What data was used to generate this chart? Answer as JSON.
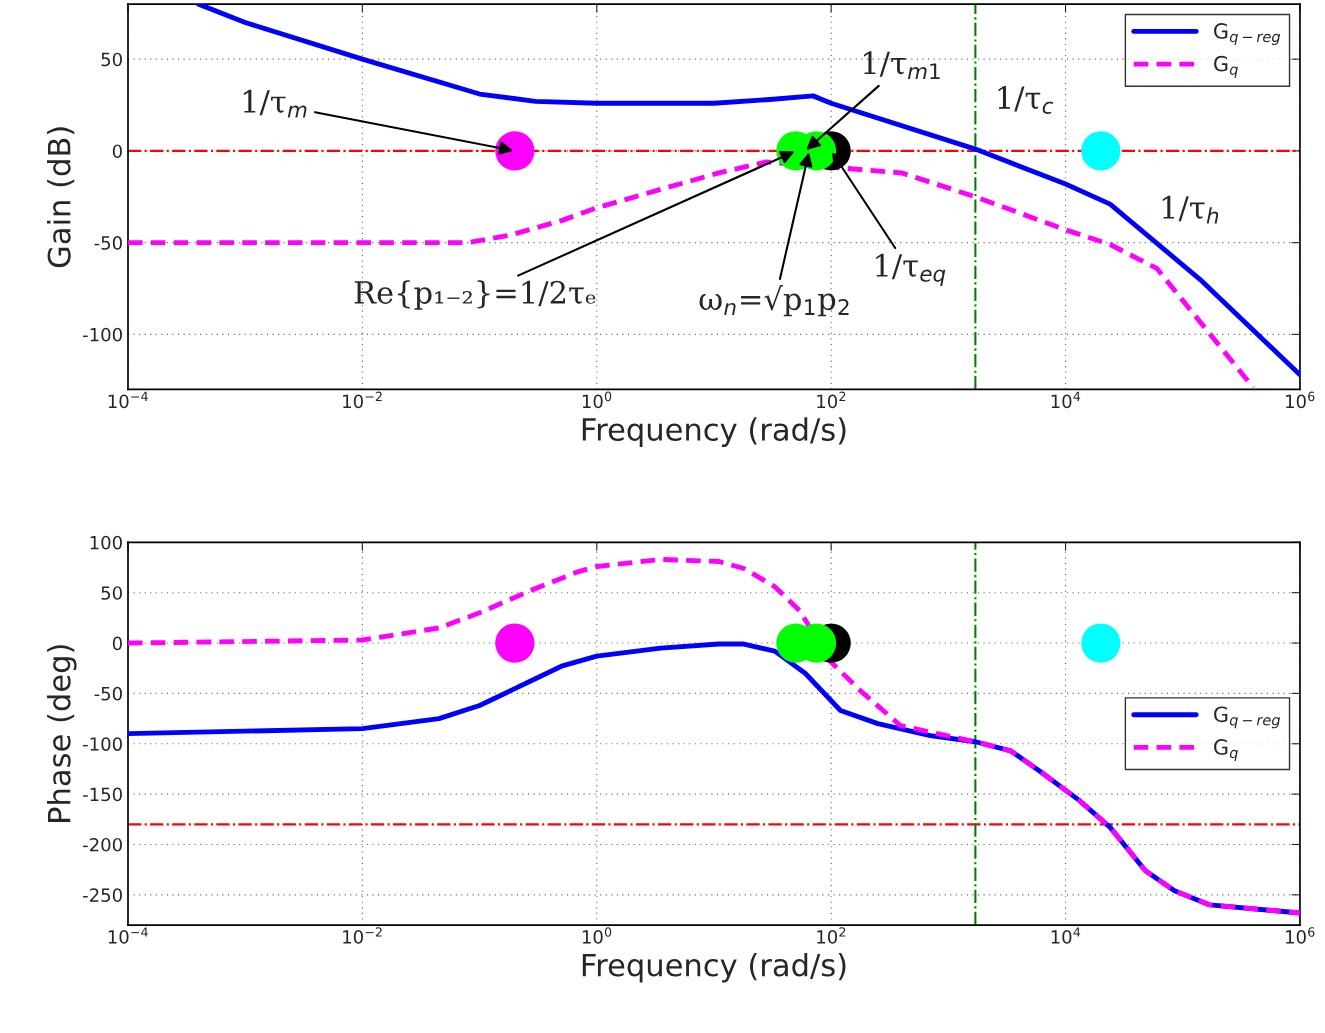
{
  "chart_data": [
    {
      "type": "line",
      "xlabel": "Frequency (rad/s)",
      "ylabel": "Gain (dB)",
      "log": "x",
      "xlim": [
        0.0001,
        1000000
      ],
      "xticks": [
        {
          "value": 0.0001,
          "label": "10$^{−4}$"
        },
        {
          "value": 0.01,
          "label": "10$^{−2}$"
        },
        {
          "value": 1,
          "label": "10$^{0}$"
        },
        {
          "value": 100,
          "label": "10$^{2}$"
        },
        {
          "value": 10000,
          "label": "10$^{4}$"
        },
        {
          "value": 1000000,
          "label": "10$^{6}$"
        }
      ],
      "ylim": [
        -130,
        80
      ],
      "yticks": [
        -100,
        -50,
        0,
        50
      ],
      "grid": true,
      "legend": "top right",
      "ref_lines": [
        {
          "axis": "y",
          "value": 0,
          "color": "#ff0000",
          "line_style": "dashdot"
        },
        {
          "axis": "x",
          "value": 1700,
          "color": "#008000",
          "line_style": "dashdot"
        }
      ],
      "series": [
        {
          "name": "G$_{q−reg}$",
          "type": "line",
          "color": "#0000ff",
          "line_style": "solid",
          "x": [
            0.0004,
            0.001,
            0.01,
            0.1,
            0.3,
            1,
            10,
            30,
            70,
            100,
            1700,
            10000,
            24000,
            140000,
            1000000
          ],
          "values": [
            80,
            70,
            50,
            31,
            27,
            26,
            26,
            28,
            30,
            26,
            1,
            -18,
            -29,
            -70,
            -122
          ]
        },
        {
          "name": "G$_{q}$",
          "type": "line",
          "color": "#ff00ff",
          "line_style": "dashed",
          "x": [
            0.0001,
            0.01,
            0.08,
            0.18,
            0.5,
            1,
            3.5,
            11,
            28,
            400,
            1700,
            10000,
            24000,
            60000,
            400000
          ],
          "values": [
            -50,
            -50,
            -50,
            -46,
            -38,
            -31,
            -21,
            -12,
            -6,
            -12,
            -25,
            -43,
            -51,
            -64,
            -129
          ]
        },
        {
          "type": "scatter",
          "marker": "circle",
          "x": [
            0.2,
            100,
            50,
            75,
            20000
          ],
          "values": [
            0,
            0,
            0,
            0,
            0
          ],
          "colors": [
            "#ff00ff",
            "#000000",
            "#00ff00",
            "#00ff00",
            "#00ffff"
          ]
        }
      ],
      "annotations": [
        {
          "text": "1/τ$_{m}$",
          "x": 0.2,
          "y": 0
        },
        {
          "text": "1/τ$_{m1}$",
          "x": 60,
          "y": 0
        },
        "1/τ$_{c}$",
        "1/τ$_{h}$",
        {
          "text": "Re{p₁₋₂}=1/2τₑ",
          "x": 50,
          "y": 0
        },
        {
          "text": "ω$_{n}$=√p$_{1}$p$_{2}$",
          "x": 65,
          "y": 0
        },
        {
          "text": "1/τ$_{eq}$",
          "x": 100,
          "y": 0
        }
      ]
    },
    {
      "type": "line",
      "xlabel": "Frequency (rad/s)",
      "ylabel": "Phase (deg)",
      "log": "x",
      "xlim": [
        0.0001,
        1000000
      ],
      "xticks": [
        {
          "value": 0.0001,
          "label": "10$^{−4}$"
        },
        {
          "value": 0.01,
          "label": "10$^{−2}$"
        },
        {
          "value": 1,
          "label": "10$^{0}$"
        },
        {
          "value": 100,
          "label": "10$^{2}$"
        },
        {
          "value": 10000,
          "label": "10$^{4}$"
        },
        {
          "value": 1000000,
          "label": "10$^{6}$"
        }
      ],
      "ylim": [
        -280,
        100
      ],
      "yticks": [
        -250,
        -200,
        -150,
        -100,
        -50,
        0,
        50,
        100
      ],
      "grid": true,
      "legend": "right",
      "ref_lines": [
        {
          "axis": "y",
          "value": -180,
          "color": "#ff0000",
          "line_style": "dashdot"
        },
        {
          "axis": "x",
          "value": 1700,
          "color": "#008000",
          "line_style": "dashdot"
        }
      ],
      "series": [
        {
          "name": "G$_{q−reg}$",
          "type": "line",
          "color": "#0000ff",
          "line_style": "solid",
          "x": [
            0.0001,
            0.01,
            0.045,
            0.1,
            0.27,
            0.5,
            1,
            3.5,
            11,
            18,
            33,
            60,
            120,
            250,
            700,
            1700,
            3400,
            6000,
            13000,
            24000,
            48000,
            85000,
            170000,
            1000000
          ],
          "values": [
            -90,
            -85,
            -75,
            -62,
            -38,
            -23,
            -13,
            -5,
            -1,
            -1,
            -8,
            -30,
            -67,
            -80,
            -92,
            -98,
            -107,
            -127,
            -156,
            -183,
            -226,
            -246,
            -260,
            -268
          ]
        },
        {
          "name": "G$_{q}$",
          "type": "line",
          "color": "#ff00ff",
          "line_style": "dashed",
          "x": [
            0.0001,
            0.01,
            0.045,
            0.1,
            0.27,
            0.7,
            1,
            3.5,
            11,
            18,
            33,
            54,
            98,
            180,
            390,
            1700,
            3400,
            6000,
            13000,
            24000,
            48000,
            85000,
            170000,
            1000000
          ],
          "values": [
            0,
            3,
            15,
            30,
            52,
            71,
            76,
            83,
            81,
            74,
            56,
            32,
            -18,
            -48,
            -82,
            -98,
            -107,
            -127,
            -156,
            -183,
            -226,
            -246,
            -260,
            -268
          ]
        },
        {
          "type": "scatter",
          "marker": "circle",
          "x": [
            0.2,
            100,
            50,
            75,
            20000
          ],
          "values": [
            0,
            0,
            0,
            0,
            0
          ],
          "colors": [
            "#ff00ff",
            "#000000",
            "#00ff00",
            "#00ff00",
            "#00ffff"
          ]
        }
      ]
    }
  ]
}
